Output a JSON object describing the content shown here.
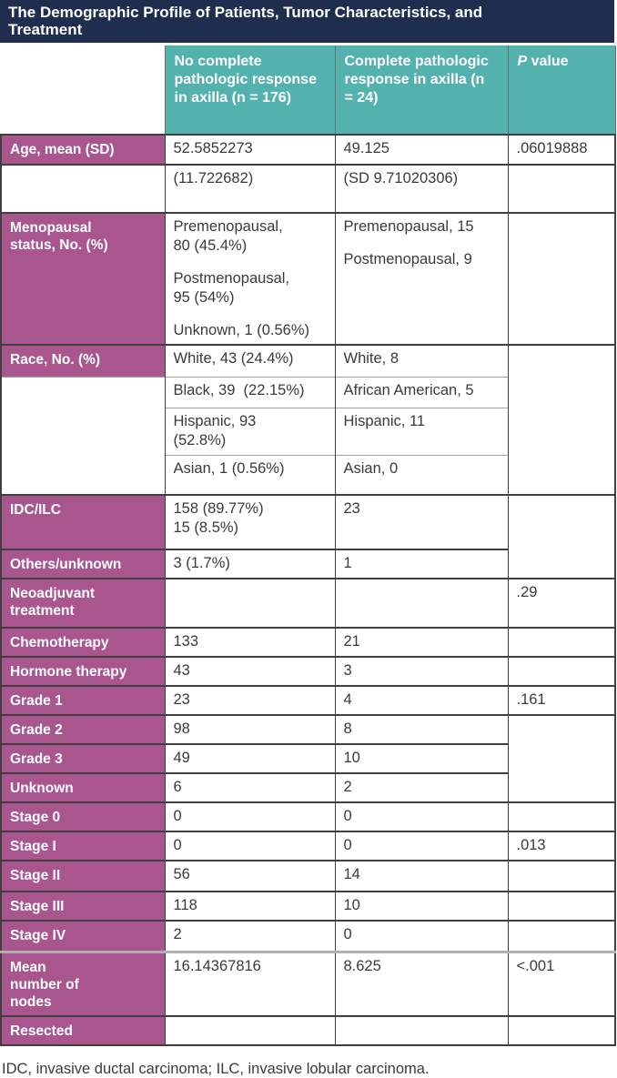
{
  "title": {
    "text": "The Demographic Profile of Patients, Tumor Characteristics, and Treatment"
  },
  "colors": {
    "title_bar": "#1F2E4E",
    "header_teal": "#53B2AE",
    "label_magenta": "#A9568F"
  },
  "header": {
    "group1": "No complete pathologic response in axilla (n = 176)",
    "group2": "Complete pathologic response in axilla (n = 24)",
    "p_italic": "P",
    "p_rest": " value"
  },
  "rows": {
    "age": {
      "label": "Age, mean (SD)",
      "group1": "52.5852273",
      "group2": "49.125",
      "p": ".06019888"
    },
    "age_sd": {
      "label": "",
      "group1": "(11.722682)",
      "group2": "(SD 9.71020306)",
      "p": ""
    },
    "menopausal": {
      "label": "Menopausal status, No. (%)",
      "group1": [
        "Premenopausal, 80 (45.4%)",
        "Postmenopausal, 95 (54%)",
        "Unknown, 1 (0.56%)"
      ],
      "group2": [
        "Premenopausal, 15",
        "Postmenopausal, 9"
      ],
      "p": ""
    },
    "race": {
      "label": "Race, No. (%)",
      "group1": [
        "White, 43 (24.4%)",
        "Black, 39  (22.15%)",
        "Hispanic, 93 (52.8%)",
        "Asian, 1 (0.56%)"
      ],
      "group2": [
        "White, 8",
        "African American, 5",
        "Hispanic, 11",
        "Asian, 0"
      ],
      "p": ""
    },
    "idc_ilc": {
      "label": "IDC/ILC",
      "group1": [
        "158 (89.77%)",
        "15 (8.5%)"
      ],
      "group2": "23",
      "p": ""
    },
    "others_unknown": {
      "label": "Others/unknown",
      "group1": "3 (1.7%)",
      "group2": "1",
      "p": ""
    },
    "neoadjuvant": {
      "label": "Neoadjuvant treatment",
      "group1": "",
      "group2": "",
      "p": ".29"
    },
    "chemotherapy": {
      "label": "Chemotherapy",
      "group1": "133",
      "group2": "21",
      "p": ""
    },
    "hormone_therapy": {
      "label": "Hormone therapy",
      "group1": "43",
      "group2": "3",
      "p": ""
    },
    "grade1": {
      "label": "Grade 1",
      "group1": "23",
      "group2": "4",
      "p": ".161"
    },
    "grade2": {
      "label": "Grade 2",
      "group1": "98",
      "group2": "8",
      "p": ""
    },
    "grade3": {
      "label": "Grade 3",
      "group1": "49",
      "group2": "10",
      "p": ""
    },
    "unknown": {
      "label": "Unknown",
      "group1": "6",
      "group2": "2",
      "p": ""
    },
    "stage0": {
      "label": "Stage 0",
      "group1": "0",
      "group2": "0",
      "p": ""
    },
    "stage1": {
      "label": "Stage I",
      "group1": "0",
      "group2": "0",
      "p": ".013"
    },
    "stage2": {
      "label": "Stage II",
      "group1": "56",
      "group2": "14",
      "p": ""
    },
    "stage3": {
      "label": "Stage III",
      "group1": "118",
      "group2": "10",
      "p": ""
    },
    "stage4": {
      "label": "Stage IV",
      "group1": "2",
      "group2": "0",
      "p": ""
    },
    "mean_nodes": {
      "label": "Mean number of nodes",
      "group1": "16.14367816",
      "group2": "8.625",
      "p": "<.001"
    },
    "resected": {
      "label": "Resected",
      "group1": "",
      "group2": "",
      "p": ""
    }
  },
  "footnote": {
    "text": "IDC, invasive ductal carcinoma; ILC, invasive lobular carcinoma."
  }
}
